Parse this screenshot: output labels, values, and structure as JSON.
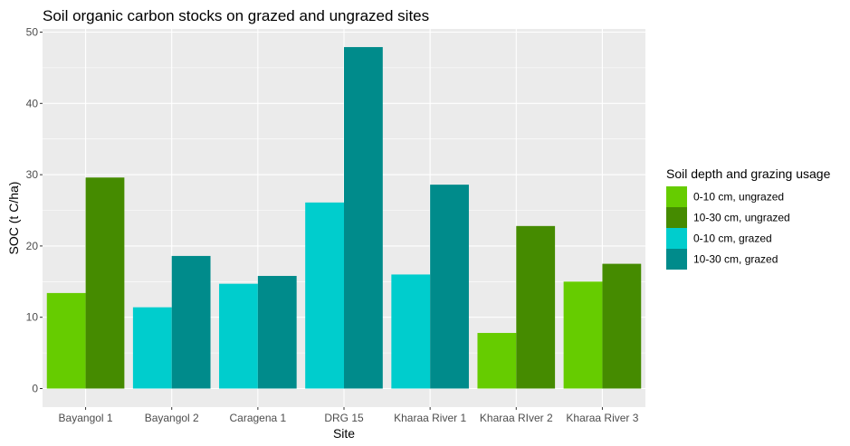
{
  "chart_data": {
    "type": "bar",
    "title": "Soil organic carbon stocks on grazed and ungrazed sites",
    "xlabel": "Site",
    "ylabel": "SOC (t C/ha)",
    "ylim": [
      0,
      50
    ],
    "yticks": [
      "0",
      "10",
      "20",
      "30",
      "40",
      "50"
    ],
    "grid": true,
    "legend_position": "right",
    "legend_title": "Soil depth and grazing usage",
    "legend": [
      {
        "label": "0-10 cm, ungrazed",
        "color": "#66cc00"
      },
      {
        "label": "10-30 cm, ungrazed",
        "color": "#458b00"
      },
      {
        "label": "0-10 cm, grazed",
        "color": "#00cdcd"
      },
      {
        "label": "10-30 cm, grazed",
        "color": "#008b8b"
      }
    ],
    "categories": [
      "Bayangol 1",
      "Bayangol 2",
      "Caragena 1",
      "DRG 15",
      "Kharaa River 1",
      "Kharaa RIver 2",
      "Kharaa River 3"
    ],
    "groups": [
      {
        "category": "Bayangol 1",
        "bars": [
          {
            "series": "0-10 cm, ungrazed",
            "value": 13.4
          },
          {
            "series": "10-30 cm, ungrazed",
            "value": 29.6
          }
        ]
      },
      {
        "category": "Bayangol 2",
        "bars": [
          {
            "series": "0-10 cm, grazed",
            "value": 11.4
          },
          {
            "series": "10-30 cm, grazed",
            "value": 18.6
          }
        ]
      },
      {
        "category": "Caragena 1",
        "bars": [
          {
            "series": "0-10 cm, grazed",
            "value": 14.7
          },
          {
            "series": "10-30 cm, grazed",
            "value": 15.8
          }
        ]
      },
      {
        "category": "DRG 15",
        "bars": [
          {
            "series": "0-10 cm, grazed",
            "value": 26.1
          },
          {
            "series": "10-30 cm, grazed",
            "value": 47.9
          }
        ]
      },
      {
        "category": "Kharaa River 1",
        "bars": [
          {
            "series": "0-10 cm, grazed",
            "value": 16.0
          },
          {
            "series": "10-30 cm, grazed",
            "value": 28.6
          }
        ]
      },
      {
        "category": "Kharaa RIver 2",
        "bars": [
          {
            "series": "0-10 cm, ungrazed",
            "value": 7.8
          },
          {
            "series": "10-30 cm, ungrazed",
            "value": 22.8
          }
        ]
      },
      {
        "category": "Kharaa River 3",
        "bars": [
          {
            "series": "0-10 cm, ungrazed",
            "value": 15.0
          },
          {
            "series": "10-30 cm, ungrazed",
            "value": 17.5
          }
        ]
      }
    ],
    "colors": {
      "panel_background": "#ebebeb",
      "gridline": "#ffffff"
    }
  }
}
